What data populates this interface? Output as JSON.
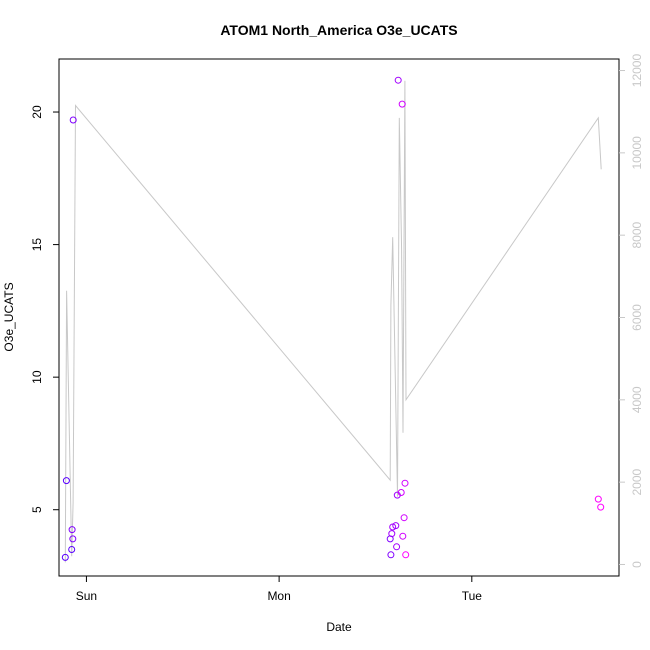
{
  "chart_data": {
    "type": "scatter",
    "title": "ATOM1 North_America O3e_UCATS",
    "xlabel": "Date",
    "ylabel": "O3e_UCATS",
    "x_axis": {
      "type": "date",
      "range": [
        "2016-08-13 20:35",
        "2016-08-16 18:20"
      ],
      "ticks": [
        {
          "value": "2016-08-14 00:00",
          "label": "Sun"
        },
        {
          "value": "2016-08-15 00:00",
          "label": "Mon"
        },
        {
          "value": "2016-08-16 00:00",
          "label": "Tue"
        }
      ]
    },
    "y_left": {
      "range": [
        2.5,
        22
      ],
      "ticks": [
        5,
        10,
        15,
        20
      ]
    },
    "y_right": {
      "range": [
        -280,
        12280
      ],
      "ticks": [
        0,
        2000,
        4000,
        6000,
        8000,
        10000,
        12000
      ],
      "color": "#c8c8c8"
    },
    "grid": false,
    "legend": "none",
    "series": [
      {
        "kind": "points",
        "axis": "left",
        "marker": "open-circle",
        "colors": [
          "#5a00ff",
          "#8000ff",
          "#a200ff",
          "#d000ff",
          "#ff00ff"
        ],
        "points": [
          {
            "x": "2016-08-13 21:22",
            "y": 3.2
          },
          {
            "x": "2016-08-13 21:30",
            "y": 6.1
          },
          {
            "x": "2016-08-13 22:10",
            "y": 3.5
          },
          {
            "x": "2016-08-13 22:13",
            "y": 4.25
          },
          {
            "x": "2016-08-13 22:18",
            "y": 3.9
          },
          {
            "x": "2016-08-13 22:21",
            "y": 19.7
          },
          {
            "x": "2016-08-15 13:50",
            "y": 3.9
          },
          {
            "x": "2016-08-15 13:55",
            "y": 3.3
          },
          {
            "x": "2016-08-15 14:02",
            "y": 4.1
          },
          {
            "x": "2016-08-15 14:09",
            "y": 4.35
          },
          {
            "x": "2016-08-15 14:32",
            "y": 4.4
          },
          {
            "x": "2016-08-15 14:38",
            "y": 3.6
          },
          {
            "x": "2016-08-15 14:43",
            "y": 5.55
          },
          {
            "x": "2016-08-15 14:50",
            "y": 21.2
          },
          {
            "x": "2016-08-15 15:12",
            "y": 5.65
          },
          {
            "x": "2016-08-15 15:20",
            "y": 20.3
          },
          {
            "x": "2016-08-15 15:24",
            "y": 4.0
          },
          {
            "x": "2016-08-15 15:34",
            "y": 4.7
          },
          {
            "x": "2016-08-15 15:41",
            "y": 6.0
          },
          {
            "x": "2016-08-15 15:46",
            "y": 3.3
          },
          {
            "x": "2016-08-16 15:45",
            "y": 5.4
          },
          {
            "x": "2016-08-16 16:03",
            "y": 5.1
          }
        ]
      },
      {
        "kind": "line",
        "axis": "right",
        "color": "#c8c8c8",
        "points": [
          {
            "x": "2016-08-13 21:22",
            "y": 50
          },
          {
            "x": "2016-08-13 21:32",
            "y": 6650
          },
          {
            "x": "2016-08-13 22:10",
            "y": 200
          },
          {
            "x": "2016-08-13 22:20",
            "y": 1500
          },
          {
            "x": "2016-08-13 22:38",
            "y": 11150
          },
          {
            "x": "2016-08-15 13:50",
            "y": 2050
          },
          {
            "x": "2016-08-15 13:55",
            "y": 6300
          },
          {
            "x": "2016-08-15 14:09",
            "y": 7950
          },
          {
            "x": "2016-08-15 14:45",
            "y": 1650
          },
          {
            "x": "2016-08-15 14:58",
            "y": 10850
          },
          {
            "x": "2016-08-15 15:15",
            "y": 7650
          },
          {
            "x": "2016-08-15 15:26",
            "y": 3200
          },
          {
            "x": "2016-08-15 15:40",
            "y": 11750
          },
          {
            "x": "2016-08-15 15:48",
            "y": 4000
          },
          {
            "x": "2016-08-16 15:45",
            "y": 10850
          },
          {
            "x": "2016-08-16 16:07",
            "y": 9600
          }
        ]
      }
    ]
  }
}
